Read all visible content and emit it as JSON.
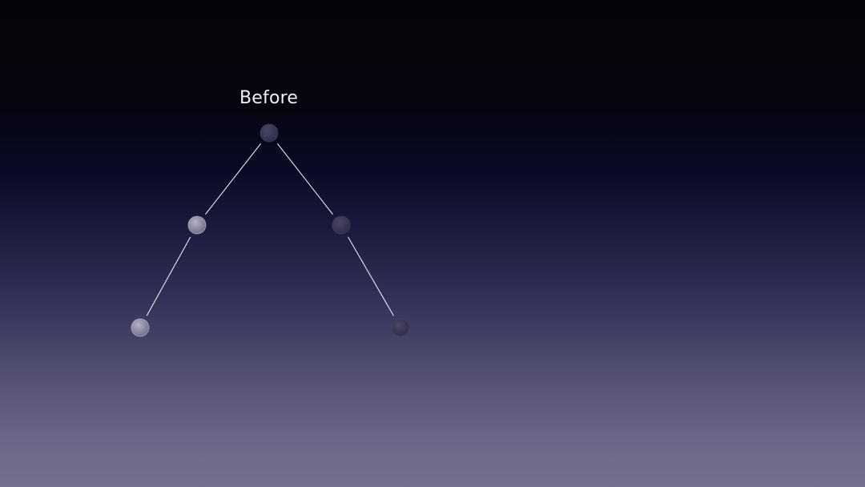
{
  "slide": {
    "title": "Before"
  },
  "tree": {
    "nodes": [
      {
        "id": "root",
        "shade": "dark"
      },
      {
        "id": "left-child",
        "shade": "light"
      },
      {
        "id": "right-child",
        "shade": "dark"
      },
      {
        "id": "left-left-grandchild",
        "shade": "light"
      },
      {
        "id": "right-right-grandchild",
        "shade": "dark"
      }
    ],
    "edges": [
      [
        "root",
        "left-child"
      ],
      [
        "root",
        "right-child"
      ],
      [
        "left-child",
        "left-left-grandchild"
      ],
      [
        "right-child",
        "right-right-grandchild"
      ]
    ]
  },
  "colors": {
    "edge": "#ffffff",
    "node_dark": "#3a3656",
    "node_light": "#8c8aa2"
  }
}
